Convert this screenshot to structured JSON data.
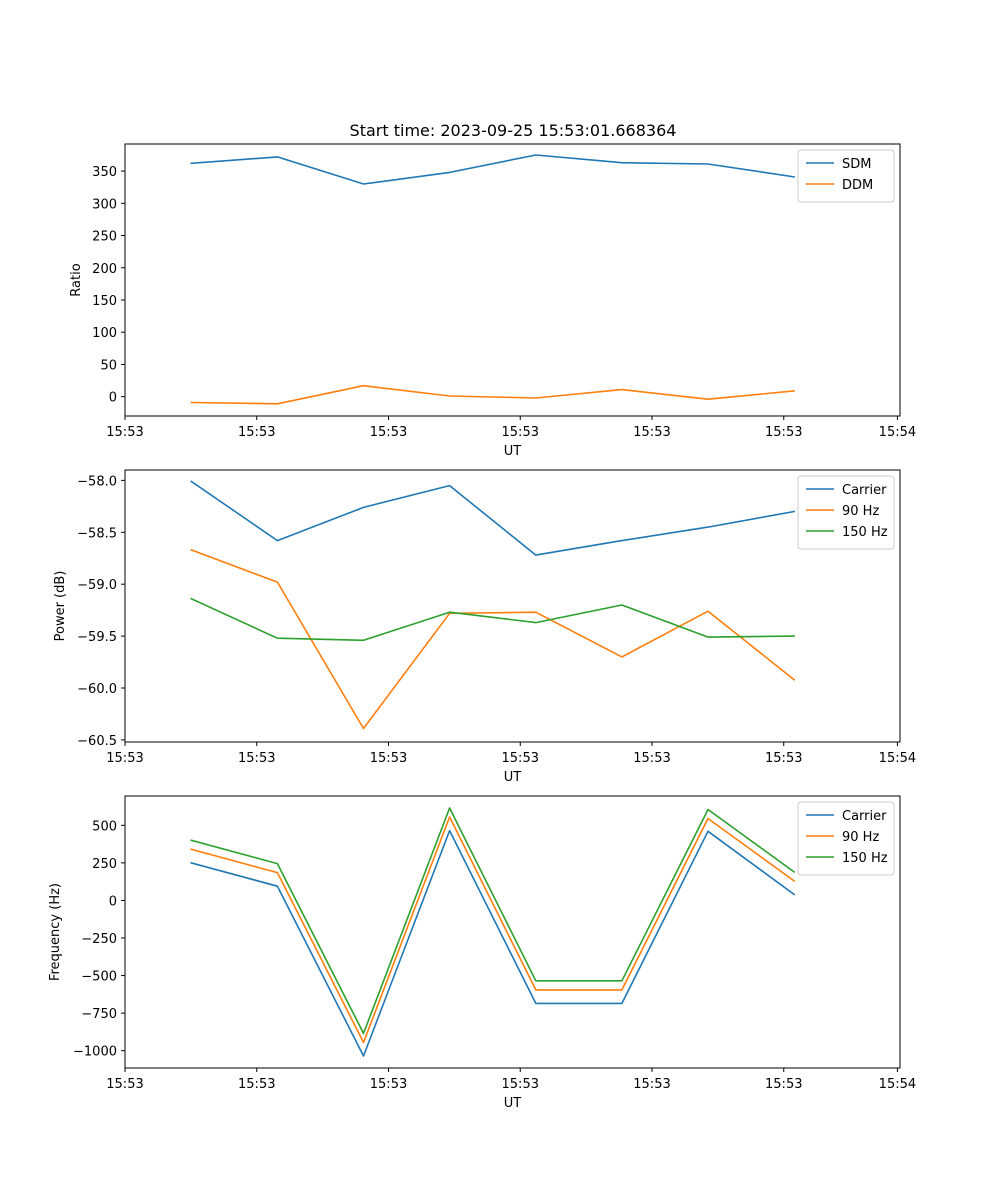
{
  "title": "Start time: 2023-09-25 15:53:01.668364",
  "colors": {
    "blue": "#1f77b4",
    "orange": "#ff7f0e",
    "green": "#2ca02c"
  },
  "chart_data": [
    {
      "type": "line",
      "title": "Start time: 2023-09-25 15:53:01.668364",
      "xlabel": "UT",
      "ylabel": "Ratio",
      "x": [
        1,
        2,
        3,
        4,
        5,
        6,
        7,
        8
      ],
      "xlim": [
        0.23,
        9.23
      ],
      "xticks": [
        0.23,
        1.76,
        3.29,
        4.82,
        6.35,
        7.88,
        9.2
      ],
      "xtick_labels": [
        "15:53",
        "15:53",
        "15:53",
        "15:53",
        "15:53",
        "15:53",
        "15:54"
      ],
      "ylim": [
        -30,
        392
      ],
      "yticks": [
        0,
        50,
        100,
        150,
        200,
        250,
        300,
        350
      ],
      "ytick_labels": [
        "0",
        "50",
        "100",
        "150",
        "200",
        "250",
        "300",
        "350"
      ],
      "legend": "top-right",
      "series": [
        {
          "name": "SDM",
          "color": "#1f77b4",
          "values": [
            362,
            372,
            330,
            348,
            375,
            363,
            361,
            341
          ]
        },
        {
          "name": "DDM",
          "color": "#ff7f0e",
          "values": [
            -9,
            -11,
            17,
            1,
            -2,
            11,
            -4,
            9
          ]
        }
      ]
    },
    {
      "type": "line",
      "title": "",
      "xlabel": "UT",
      "ylabel": "Power (dB)",
      "x": [
        1,
        2,
        3,
        4,
        5,
        6,
        7,
        8
      ],
      "xlim": [
        0.23,
        9.23
      ],
      "xticks": [
        0.23,
        1.76,
        3.29,
        4.82,
        6.35,
        7.88,
        9.2
      ],
      "xtick_labels": [
        "15:53",
        "15:53",
        "15:53",
        "15:53",
        "15:53",
        "15:53",
        "15:54"
      ],
      "ylim": [
        -60.52,
        -57.9
      ],
      "yticks": [
        -58.0,
        -58.5,
        -59.0,
        -59.5,
        -60.0,
        -60.5
      ],
      "ytick_labels": [
        "−58.0",
        "−58.5",
        "−59.0",
        "−59.5",
        "−60.0",
        "−60.5"
      ],
      "legend": "top-right",
      "series": [
        {
          "name": "Carrier",
          "color": "#1f77b4",
          "values": [
            -58.01,
            -58.58,
            -58.26,
            -58.05,
            -58.72,
            -58.58,
            -58.45,
            -58.3
          ]
        },
        {
          "name": "90 Hz",
          "color": "#ff7f0e",
          "values": [
            -58.67,
            -58.98,
            -60.39,
            -59.28,
            -59.27,
            -59.7,
            -59.26,
            -59.92
          ]
        },
        {
          "name": "150 Hz",
          "color": "#2ca02c",
          "values": [
            -59.14,
            -59.52,
            -59.54,
            -59.27,
            -59.37,
            -59.2,
            -59.51,
            -59.5
          ]
        }
      ]
    },
    {
      "type": "line",
      "title": "",
      "xlabel": "UT",
      "ylabel": "Frequency (Hz)",
      "x": [
        1,
        2,
        3,
        4,
        5,
        6,
        7,
        8
      ],
      "xlim": [
        0.23,
        9.23
      ],
      "xticks": [
        0.23,
        1.76,
        3.29,
        4.82,
        6.35,
        7.88,
        9.2
      ],
      "xtick_labels": [
        "15:53",
        "15:53",
        "15:53",
        "15:53",
        "15:53",
        "15:53",
        "15:54"
      ],
      "ylim": [
        -1115,
        695
      ],
      "yticks": [
        500,
        250,
        0,
        -250,
        -500,
        -750,
        -1000
      ],
      "ytick_labels": [
        "500",
        "250",
        "0",
        "−250",
        "−500",
        "−750",
        "−1000"
      ],
      "legend": "top-right",
      "series": [
        {
          "name": "Carrier",
          "color": "#1f77b4",
          "values": [
            250,
            95,
            -1035,
            465,
            -685,
            -685,
            460,
            40
          ]
        },
        {
          "name": "90 Hz",
          "color": "#ff7f0e",
          "values": [
            340,
            185,
            -945,
            555,
            -595,
            -595,
            545,
            130
          ]
        },
        {
          "name": "150 Hz",
          "color": "#2ca02c",
          "values": [
            400,
            245,
            -885,
            615,
            -535,
            -535,
            605,
            190
          ]
        }
      ]
    }
  ]
}
